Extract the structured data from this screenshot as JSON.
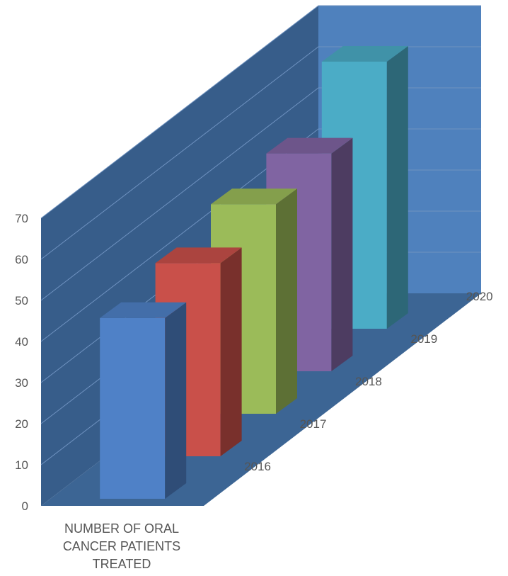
{
  "chart_data": {
    "type": "bar",
    "style": "3d-column",
    "category_label_lines": [
      "NUMBER OF ORAL",
      "CANCER PATIENTS",
      "TREATED"
    ],
    "yticks": [
      "0",
      "10",
      "20",
      "30",
      "40",
      "50",
      "60",
      "70"
    ],
    "ylim": [
      0,
      70
    ],
    "grid": true,
    "series": [
      {
        "name": "2016",
        "values": [
          44
        ],
        "color": "#4f81c7"
      },
      {
        "name": "2017",
        "values": [
          47
        ],
        "color": "#c9504a"
      },
      {
        "name": "2018",
        "values": [
          51
        ],
        "color": "#9bbb59"
      },
      {
        "name": "2019",
        "values": [
          53
        ],
        "color": "#8064a2"
      },
      {
        "name": "2020",
        "values": [
          65
        ],
        "color": "#4bacc6"
      }
    ]
  },
  "colors": {
    "back_wall": "#4f81bd",
    "side_wall": "#375d8a",
    "floor": "#3c6594",
    "grid": "#6f92c0"
  }
}
